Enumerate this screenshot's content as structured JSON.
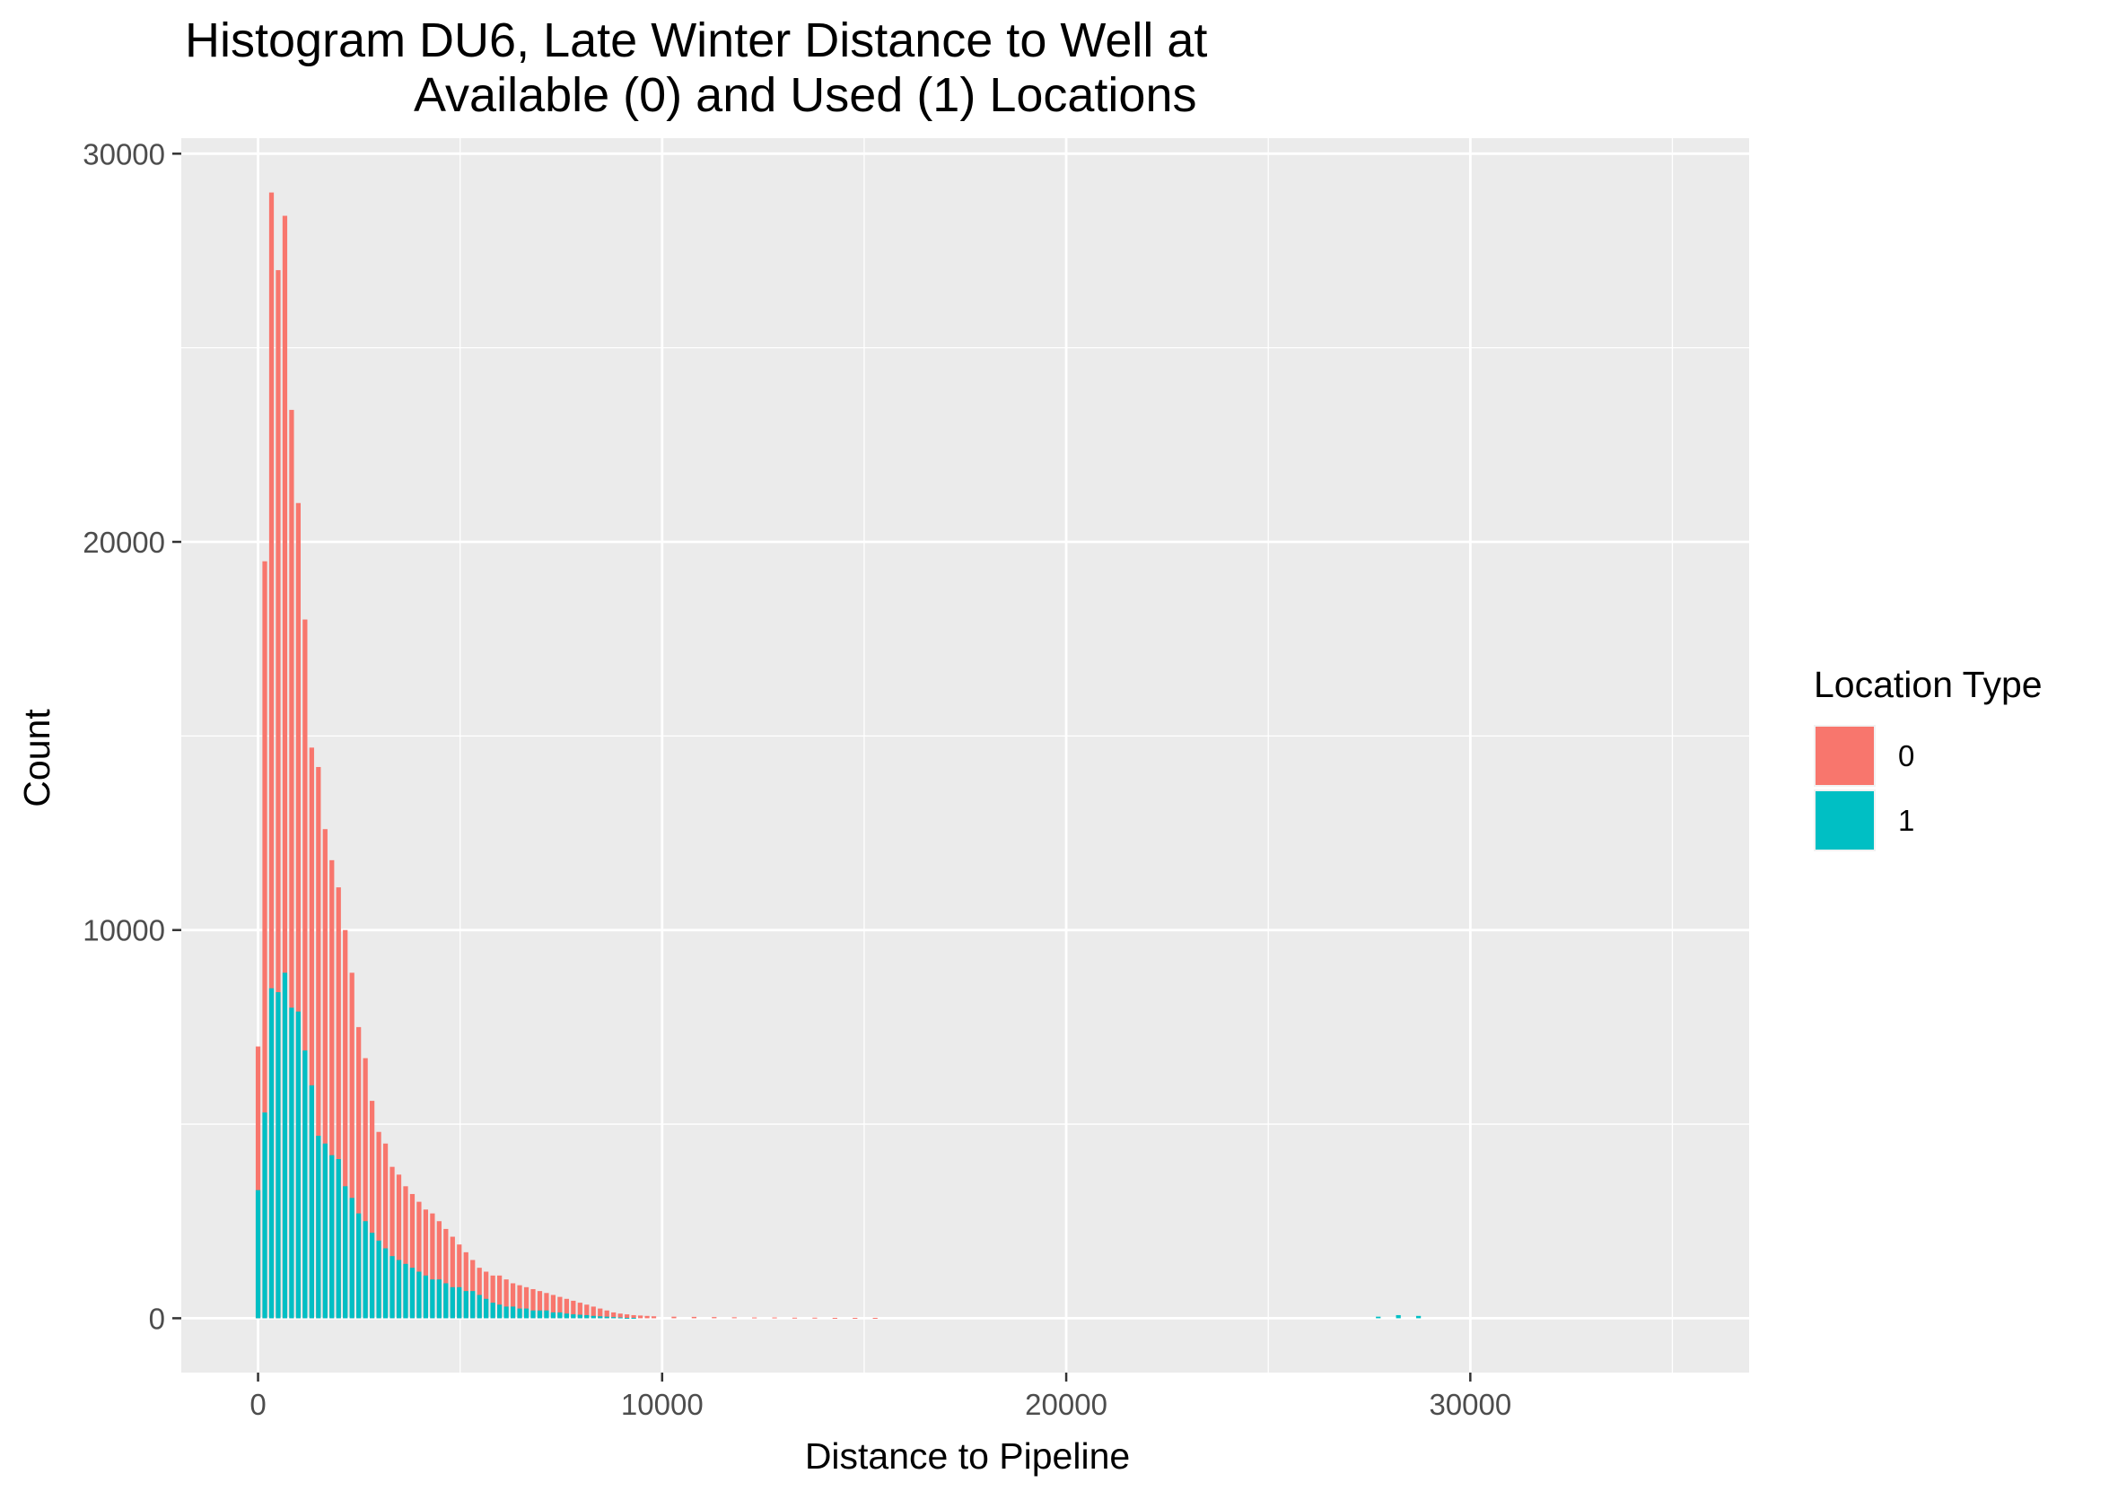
{
  "chart_data": {
    "type": "bar",
    "title_lines": [
      "Histogram DU6, Late Winter Distance to Well at",
      "Available (0) and Used (1) Locations"
    ],
    "xlabel": "Distance to Pipeline",
    "ylabel": "Count",
    "xlim": [
      -1900,
      36900
    ],
    "ylim": [
      -1400,
      30400
    ],
    "x_ticks": [
      0,
      10000,
      20000,
      30000
    ],
    "x_tick_labels": [
      "0",
      "10000",
      "20000",
      "30000"
    ],
    "y_ticks": [
      0,
      10000,
      20000,
      30000
    ],
    "y_tick_labels": [
      "0",
      "10000",
      "20000",
      "30000"
    ],
    "grid": true,
    "bin_width": 166,
    "legend": {
      "title": "Location Type",
      "position": "right",
      "entries": [
        {
          "label": "0",
          "color": "#F8766D"
        },
        {
          "label": "1",
          "color": "#00BFC4"
        }
      ]
    },
    "series": [
      {
        "name": "0",
        "color": "#F8766D",
        "x": [
          0,
          166,
          332,
          498,
          664,
          830,
          996,
          1162,
          1328,
          1494,
          1660,
          1826,
          1992,
          2158,
          2324,
          2490,
          2656,
          2822,
          2988,
          3154,
          3320,
          3486,
          3652,
          3818,
          3984,
          4150,
          4316,
          4482,
          4648,
          4814,
          4980,
          5146,
          5312,
          5478,
          5644,
          5810,
          5976,
          6142,
          6308,
          6474,
          6640,
          6806,
          6972,
          7138,
          7304,
          7470,
          7636,
          7802,
          7968,
          8134,
          8300,
          8466,
          8632,
          8798,
          8964,
          9130,
          9296,
          9462,
          9628,
          9794,
          10292,
          10790,
          11288,
          11786,
          12284,
          12782,
          13280,
          13778,
          14276,
          14774,
          15272
        ],
        "values": [
          7000,
          19500,
          29000,
          27000,
          28400,
          23400,
          21000,
          18000,
          14700,
          14200,
          12600,
          11800,
          11100,
          10000,
          8900,
          7500,
          6700,
          5600,
          4800,
          4500,
          3900,
          3700,
          3400,
          3200,
          3000,
          2800,
          2700,
          2500,
          2300,
          2100,
          1900,
          1700,
          1500,
          1300,
          1200,
          1100,
          1100,
          1000,
          900,
          850,
          800,
          750,
          700,
          650,
          600,
          550,
          500,
          450,
          400,
          350,
          300,
          250,
          200,
          150,
          120,
          100,
          80,
          70,
          60,
          50,
          40,
          35,
          30,
          25,
          20,
          20,
          15,
          15,
          10,
          10,
          10
        ]
      },
      {
        "name": "1",
        "color": "#00BFC4",
        "x": [
          0,
          166,
          332,
          498,
          664,
          830,
          996,
          1162,
          1328,
          1494,
          1660,
          1826,
          1992,
          2158,
          2324,
          2490,
          2656,
          2822,
          2988,
          3154,
          3320,
          3486,
          3652,
          3818,
          3984,
          4150,
          4316,
          4482,
          4648,
          4814,
          4980,
          5146,
          5312,
          5478,
          5644,
          5810,
          5976,
          6142,
          6308,
          6474,
          6640,
          6806,
          6972,
          7138,
          7304,
          7470,
          7636,
          7802,
          7968,
          8134,
          8300,
          8466,
          8632,
          8798,
          8964,
          9130,
          9296,
          27722,
          28220,
          28718
        ],
        "values": [
          3300,
          5300,
          8500,
          8400,
          8900,
          8000,
          7900,
          6900,
          6000,
          4700,
          4500,
          4200,
          4100,
          3400,
          3100,
          2700,
          2500,
          2200,
          2000,
          1800,
          1600,
          1500,
          1400,
          1300,
          1200,
          1100,
          1000,
          1000,
          900,
          800,
          800,
          700,
          700,
          600,
          500,
          400,
          350,
          300,
          300,
          250,
          250,
          200,
          200,
          200,
          150,
          150,
          120,
          100,
          90,
          80,
          60,
          50,
          40,
          30,
          20,
          10,
          10,
          40,
          80,
          60
        ]
      }
    ]
  }
}
